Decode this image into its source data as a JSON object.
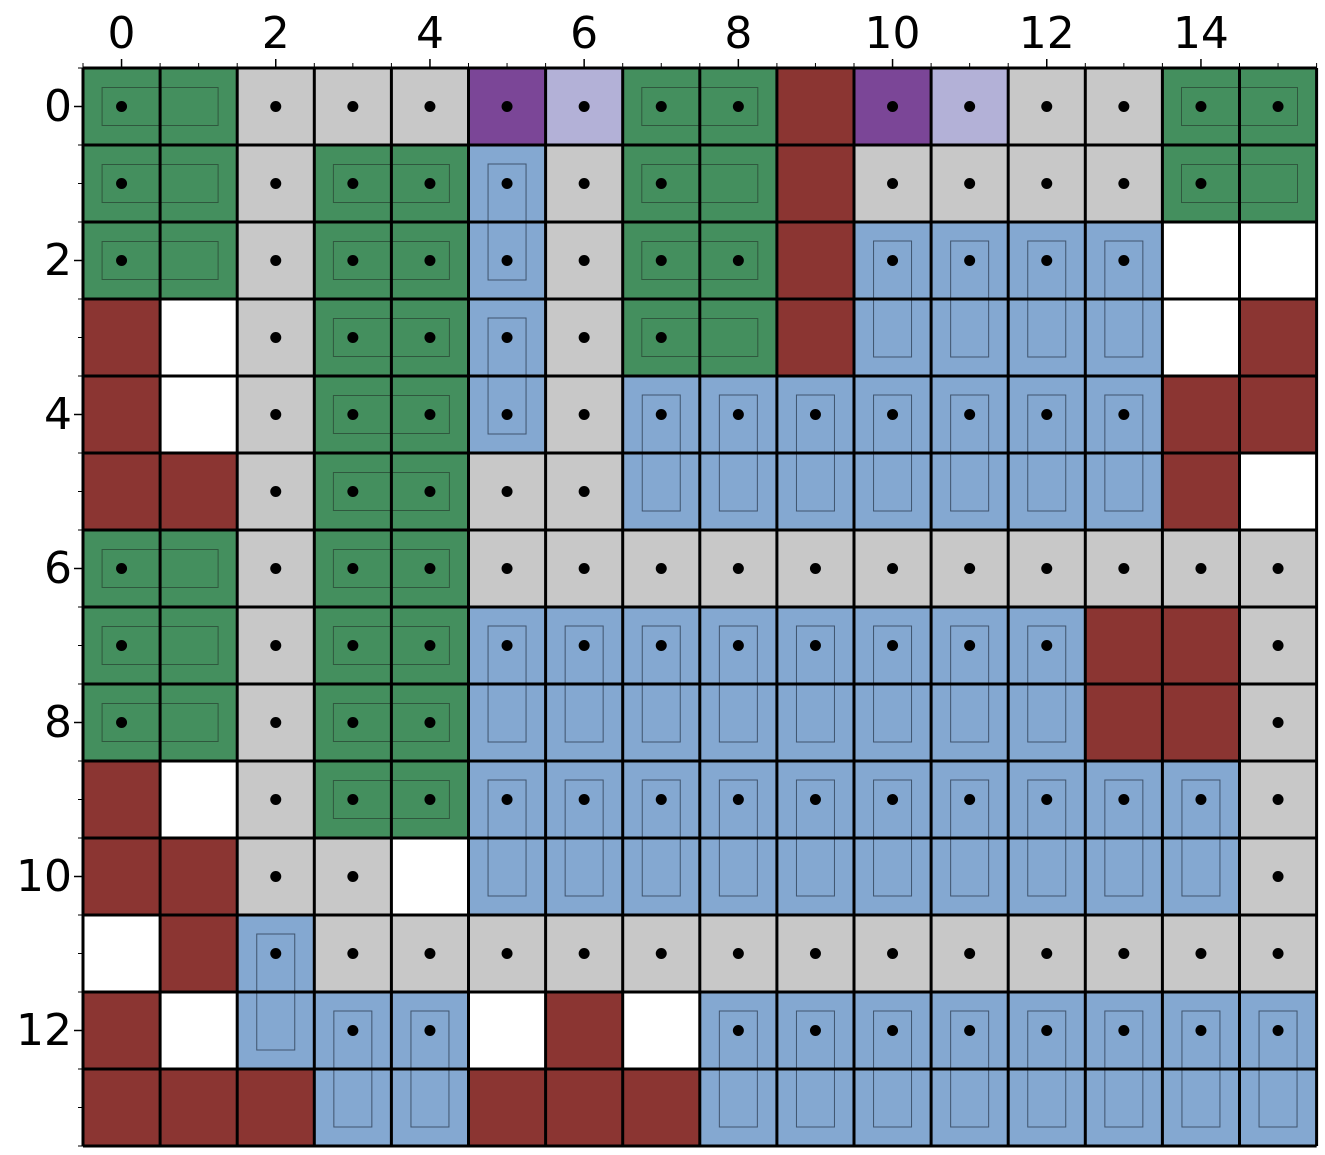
{
  "colors": {
    "G": "#448f5e",
    "S": "#c8c8c8",
    "P": "#7b4697",
    "L": "#b3b1d7",
    "R": "#8b3532",
    "B": "#84a8d1",
    "W": "#ffffff"
  },
  "grid": {
    "rows": [
      "GGSSSPLGGRPLSSGG",
      "GGSGGBSGGRSSSSGG",
      "GGSGGBSGGRBBBBWW",
      "RWSGGBSGGRBBBBWR",
      "RWSGGBSBBBBBBBRR",
      "RRSGGSSBBBBBBBRW",
      "GGSGGSSSSSSSSSSS",
      "GGSGGBBBBBBBBRRS",
      "GGSGGBBBBBBBBRRS",
      "RWSGGBBBBBBBBBBS",
      "RRSSWBBBBBBBBBBS",
      "WRBSSSSSSSSSSSSS",
      "RWBBBWRWBBBBBBBB",
      "RRRBBRRRBBBBBBBB"
    ],
    "dots": [
      "1011111110111111",
      "1011111100111110",
      "1011111110111100",
      "0011111100000000",
      "0011111111111100",
      "0011111000000000",
      "1011111111111111",
      "1011111111111001",
      "1011100000000001",
      "0011111111111111",
      "0011000000000001",
      "0011111111111111",
      "0001100011111111",
      "0000000000000000"
    ],
    "hbars": [
      {
        "row": 0,
        "col": 0
      },
      {
        "row": 0,
        "col": 7
      },
      {
        "row": 0,
        "col": 14
      },
      {
        "row": 1,
        "col": 0
      },
      {
        "row": 1,
        "col": 3
      },
      {
        "row": 1,
        "col": 7
      },
      {
        "row": 1,
        "col": 14
      },
      {
        "row": 2,
        "col": 0
      },
      {
        "row": 2,
        "col": 3
      },
      {
        "row": 2,
        "col": 7
      },
      {
        "row": 3,
        "col": 3
      },
      {
        "row": 3,
        "col": 7
      },
      {
        "row": 4,
        "col": 3
      },
      {
        "row": 5,
        "col": 3
      },
      {
        "row": 6,
        "col": 0
      },
      {
        "row": 6,
        "col": 3
      },
      {
        "row": 7,
        "col": 0
      },
      {
        "row": 7,
        "col": 3
      },
      {
        "row": 8,
        "col": 0
      },
      {
        "row": 8,
        "col": 3
      },
      {
        "row": 9,
        "col": 3
      }
    ],
    "vbars": [
      {
        "row": 1,
        "col": 5
      },
      {
        "row": 3,
        "col": 5
      },
      {
        "row": 2,
        "col": 10
      },
      {
        "row": 2,
        "col": 11
      },
      {
        "row": 2,
        "col": 12
      },
      {
        "row": 2,
        "col": 13
      },
      {
        "row": 4,
        "col": 7
      },
      {
        "row": 4,
        "col": 8
      },
      {
        "row": 4,
        "col": 9
      },
      {
        "row": 4,
        "col": 10
      },
      {
        "row": 4,
        "col": 11
      },
      {
        "row": 4,
        "col": 12
      },
      {
        "row": 4,
        "col": 13
      },
      {
        "row": 7,
        "col": 5
      },
      {
        "row": 7,
        "col": 6
      },
      {
        "row": 7,
        "col": 7
      },
      {
        "row": 7,
        "col": 8
      },
      {
        "row": 7,
        "col": 9
      },
      {
        "row": 7,
        "col": 10
      },
      {
        "row": 7,
        "col": 11
      },
      {
        "row": 7,
        "col": 12
      },
      {
        "row": 9,
        "col": 5
      },
      {
        "row": 9,
        "col": 6
      },
      {
        "row": 9,
        "col": 7
      },
      {
        "row": 9,
        "col": 8
      },
      {
        "row": 9,
        "col": 9
      },
      {
        "row": 9,
        "col": 10
      },
      {
        "row": 9,
        "col": 11
      },
      {
        "row": 9,
        "col": 12
      },
      {
        "row": 9,
        "col": 13
      },
      {
        "row": 9,
        "col": 14
      },
      {
        "row": 11,
        "col": 2
      },
      {
        "row": 12,
        "col": 3
      },
      {
        "row": 12,
        "col": 4
      },
      {
        "row": 12,
        "col": 8
      },
      {
        "row": 12,
        "col": 9
      },
      {
        "row": 12,
        "col": 10
      },
      {
        "row": 12,
        "col": 11
      },
      {
        "row": 12,
        "col": 12
      },
      {
        "row": 12,
        "col": 13
      },
      {
        "row": 12,
        "col": 14
      },
      {
        "row": 12,
        "col": 15
      }
    ]
  },
  "axes": {
    "x_ticks": [
      "0",
      "2",
      "4",
      "6",
      "8",
      "10",
      "12",
      "14"
    ],
    "y_ticks": [
      "0",
      "2",
      "4",
      "6",
      "8",
      "10",
      "12"
    ]
  }
}
